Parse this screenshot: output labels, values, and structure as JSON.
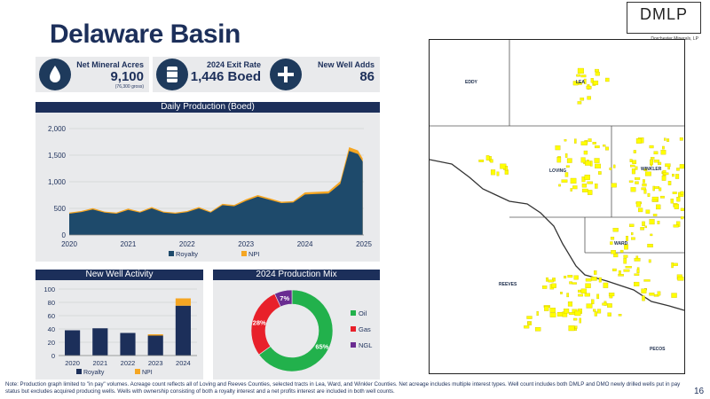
{
  "page": {
    "title": "Delaware Basin",
    "logo_text": "DMLP",
    "logo_sub": "Dorchester Minerals, LP",
    "page_number": "16",
    "note": "Note: Production graph limited to \"in pay\" volumes. Acreage count reflects all of Loving and Reeves Counties, selected tracts in Lea, Ward, and Winkler Counties. Net acreage includes multiple interest types. Well count includes both DMLP and DMO newly drilled wells put in pay status but excludes acquired producing wells. Wells with ownership consisting of both a royalty interest and a net profits interest are included in both well counts."
  },
  "kpis": [
    {
      "label": "Net Mineral Acres",
      "value": "9,100",
      "sub": "(76,300 gross)",
      "icon": "drop-icon"
    },
    {
      "label": "2024 Exit Rate",
      "value": "1,446 Boed",
      "sub": "",
      "icon": "barrel-icon"
    },
    {
      "label": "New Well Adds",
      "value": "86",
      "sub": "",
      "icon": "plus-icon"
    }
  ],
  "map": {
    "counties": [
      "EDDY",
      "LEA",
      "LOVING",
      "WINKLER",
      "WARD",
      "REEVES",
      "PECOS"
    ]
  },
  "colors": {
    "navy": "#1c2f5a",
    "royalty": "#1e4a6b",
    "npi": "#f5a623",
    "oil": "#22b14c",
    "gas": "#e8202a",
    "ngl": "#6a2c91",
    "tract": "#ffff00"
  },
  "chart_data": [
    {
      "type": "area",
      "title": "Daily Production (Boed)",
      "x_ticks": [
        "2020",
        "2021",
        "2022",
        "2023",
        "2024",
        "2025"
      ],
      "y_ticks": [
        "0",
        "500",
        "1,000",
        "1,500",
        "2,000"
      ],
      "ylim": [
        0,
        2000
      ],
      "xlim": [
        2020,
        2025
      ],
      "x": [
        2020.0,
        2020.2,
        2020.4,
        2020.6,
        2020.8,
        2021.0,
        2021.2,
        2021.4,
        2021.6,
        2021.8,
        2022.0,
        2022.2,
        2022.4,
        2022.6,
        2022.8,
        2023.0,
        2023.2,
        2023.4,
        2023.6,
        2023.8,
        2024.0,
        2024.2,
        2024.4,
        2024.6,
        2024.75,
        2024.9,
        2024.98
      ],
      "series": [
        {
          "name": "Royalty",
          "values": [
            400,
            430,
            480,
            420,
            400,
            470,
            420,
            500,
            420,
            400,
            430,
            500,
            420,
            560,
            540,
            640,
            720,
            660,
            600,
            610,
            760,
            770,
            780,
            960,
            1580,
            1520,
            1380
          ]
        },
        {
          "name": "NPI",
          "values": [
            20,
            20,
            25,
            20,
            20,
            25,
            20,
            25,
            20,
            20,
            20,
            25,
            20,
            25,
            25,
            30,
            30,
            30,
            25,
            25,
            40,
            40,
            40,
            50,
            70,
            70,
            60
          ]
        }
      ]
    },
    {
      "type": "bar",
      "title": "New Well Activity",
      "categories": [
        "2020",
        "2021",
        "2022",
        "2023",
        "2024"
      ],
      "y_ticks": [
        "0",
        "20",
        "40",
        "60",
        "80",
        "100"
      ],
      "ylim": [
        0,
        100
      ],
      "series": [
        {
          "name": "Royalty",
          "values": [
            38,
            41,
            34,
            30,
            75
          ]
        },
        {
          "name": "NPI",
          "values": [
            0,
            0,
            0,
            2,
            11
          ]
        }
      ]
    },
    {
      "type": "pie",
      "title": "2024 Production Mix",
      "categories": [
        "Oil",
        "Gas",
        "NGL"
      ],
      "values": [
        65,
        28,
        7
      ],
      "labels": [
        "65%",
        "28%",
        "7%"
      ]
    }
  ]
}
